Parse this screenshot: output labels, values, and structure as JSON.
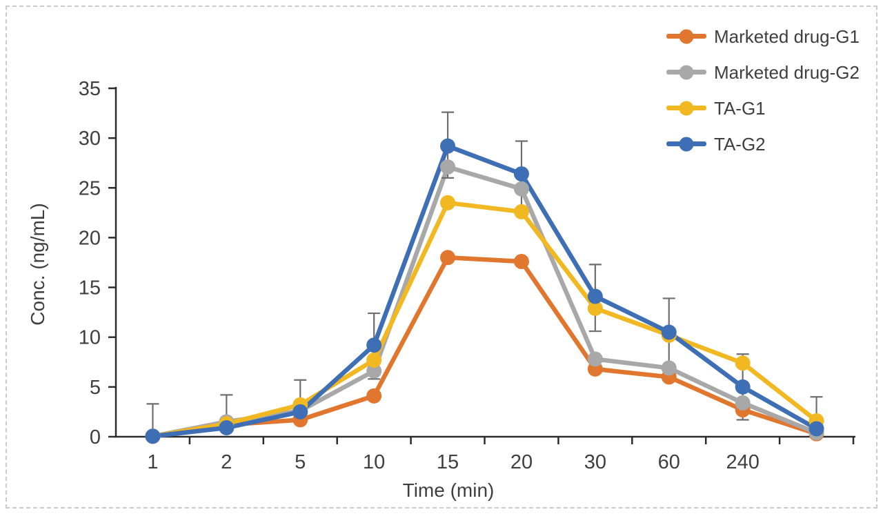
{
  "figure": {
    "background": "#ffffff",
    "border_color": "#cbcbcb"
  },
  "chart_data": {
    "type": "line",
    "title": "",
    "xlabel": "Time (min)",
    "ylabel": "Conc. (ng/mL)",
    "categories": [
      "1",
      "2",
      "5",
      "10",
      "15",
      "20",
      "30",
      "60",
      "240",
      ""
    ],
    "ylim": [
      0,
      35
    ],
    "yticks": [
      0,
      5,
      10,
      15,
      20,
      25,
      30,
      35
    ],
    "grid": false,
    "legend_position": "top-right",
    "axis_color": "#2b2b2b",
    "text_color": "#3f3f3f",
    "series": [
      {
        "name": "Marketed drug-G1",
        "color": "#E1772E",
        "values": [
          0.05,
          1.2,
          1.7,
          4.1,
          18.0,
          17.6,
          6.8,
          6.0,
          2.7,
          0.3
        ]
      },
      {
        "name": "Marketed drug-G2",
        "color": "#A8A8A8",
        "values": [
          0.05,
          1.5,
          2.6,
          6.6,
          27.1,
          24.9,
          7.8,
          6.9,
          3.4,
          0.4
        ]
      },
      {
        "name": "TA-G1",
        "color": "#F2B822",
        "values": [
          0.05,
          1.3,
          3.2,
          7.7,
          23.5,
          22.6,
          12.9,
          10.2,
          7.4,
          1.6
        ]
      },
      {
        "name": "TA-G2",
        "color": "#3E6FB4",
        "values": [
          0.05,
          0.9,
          2.5,
          9.2,
          29.2,
          26.4,
          14.1,
          10.5,
          5.0,
          0.8
        ]
      }
    ],
    "error_bars": {
      "color": "#6E6E6E",
      "ranges": [
        [
          0,
          3.3
        ],
        [
          1.0,
          4.2
        ],
        [
          2.0,
          5.7
        ],
        [
          5.8,
          12.4
        ],
        [
          26.0,
          32.6
        ],
        [
          22.8,
          29.7
        ],
        [
          10.6,
          17.3
        ],
        [
          7.0,
          13.9
        ],
        [
          1.7,
          8.3
        ],
        [
          0.7,
          4.0
        ]
      ]
    }
  }
}
